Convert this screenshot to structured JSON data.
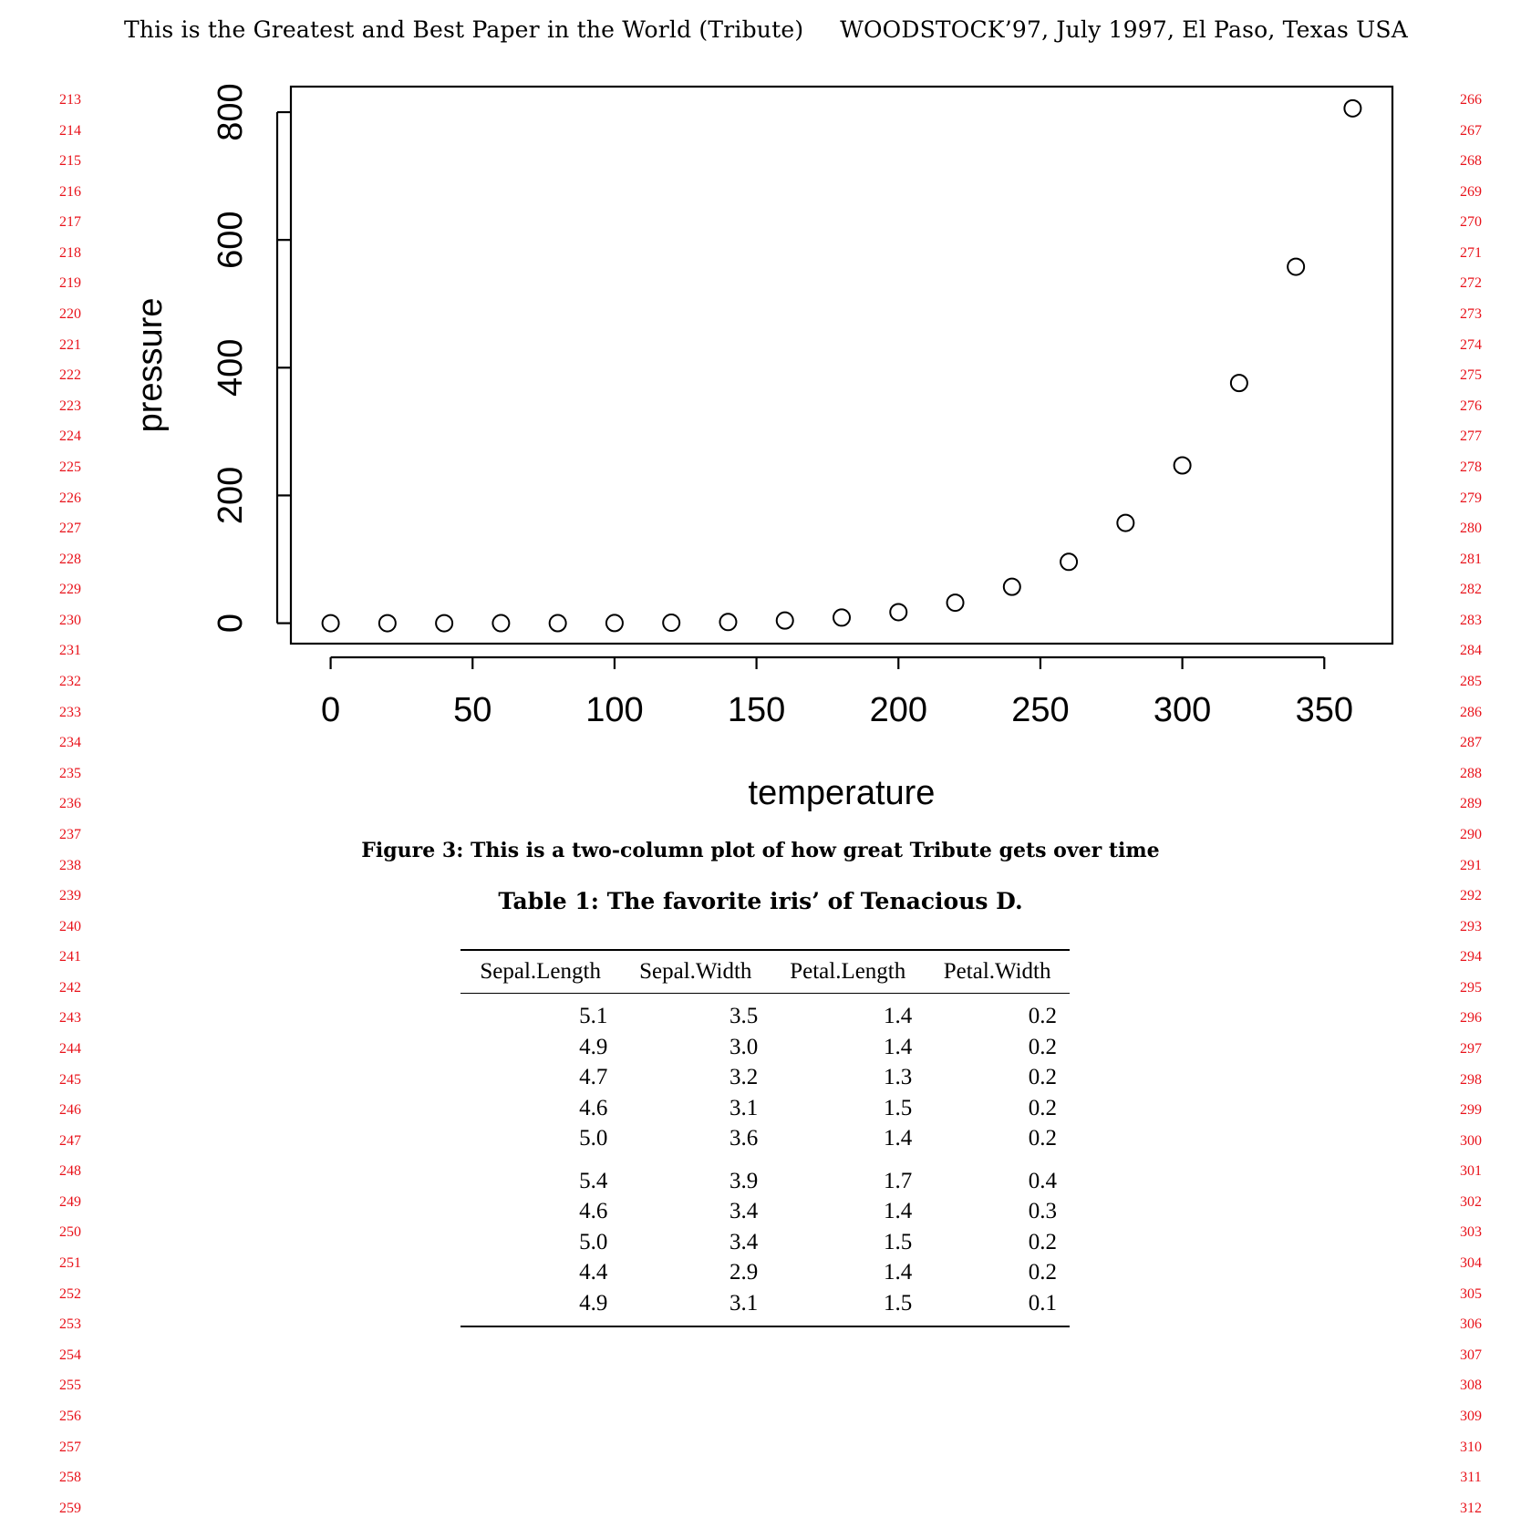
{
  "running_head": {
    "left": "This is the Greatest and Best Paper in the World (Tribute)",
    "right": "WOODSTOCK’97, July 1997, El Paso, Texas USA"
  },
  "line_numbers": {
    "left": [
      "213",
      "214",
      "215",
      "216",
      "217",
      "218",
      "219",
      "220",
      "221",
      "222",
      "223",
      "224",
      "225",
      "226",
      "227",
      "228",
      "229",
      "230",
      "231",
      "232",
      "233",
      "234",
      "235",
      "236",
      "237",
      "238",
      "239",
      "240",
      "241",
      "242",
      "243",
      "244",
      "245",
      "246",
      "247",
      "248",
      "249",
      "250",
      "251",
      "252",
      "253",
      "254",
      "255",
      "256",
      "257",
      "258",
      "259"
    ],
    "right": [
      "266",
      "267",
      "268",
      "269",
      "270",
      "271",
      "272",
      "273",
      "274",
      "275",
      "276",
      "277",
      "278",
      "279",
      "280",
      "281",
      "282",
      "283",
      "284",
      "285",
      "286",
      "287",
      "288",
      "289",
      "290",
      "291",
      "292",
      "293",
      "294",
      "295",
      "296",
      "297",
      "298",
      "299",
      "300",
      "301",
      "302",
      "303",
      "304",
      "305",
      "306",
      "307",
      "308",
      "309",
      "310",
      "311",
      "312"
    ],
    "color": "#e8121a"
  },
  "figure": {
    "caption": "Figure 3: This is a two-column plot of how great Tribute gets over time"
  },
  "chart_data": {
    "type": "scatter",
    "title": "",
    "xlabel": "temperature",
    "ylabel": "pressure",
    "xlim": [
      -14,
      374
    ],
    "ylim": [
      -32,
      840
    ],
    "xticks": [
      0,
      50,
      100,
      150,
      200,
      250,
      300,
      350
    ],
    "yticks": [
      0,
      200,
      400,
      600,
      800
    ],
    "grid": false,
    "marker": "open-circle",
    "series": [
      {
        "x": [
          0,
          20,
          40,
          60,
          80,
          100,
          120,
          140,
          160,
          180,
          200,
          220,
          240,
          260,
          280,
          300,
          320,
          340,
          360
        ],
        "y": [
          0.0002,
          0.0012,
          0.006,
          0.03,
          0.09,
          0.27,
          0.75,
          1.85,
          4.2,
          8.8,
          17.3,
          32.1,
          57,
          96,
          157,
          247,
          376,
          558,
          806
        ]
      }
    ]
  },
  "table": {
    "caption": "Table 1: The favorite iris’ of Tenacious D.",
    "columns": [
      "Sepal.Length",
      "Sepal.Width",
      "Petal.Length",
      "Petal.Width"
    ],
    "rows": [
      [
        "5.1",
        "3.5",
        "1.4",
        "0.2"
      ],
      [
        "4.9",
        "3.0",
        "1.4",
        "0.2"
      ],
      [
        "4.7",
        "3.2",
        "1.3",
        "0.2"
      ],
      [
        "4.6",
        "3.1",
        "1.5",
        "0.2"
      ],
      [
        "5.0",
        "3.6",
        "1.4",
        "0.2"
      ],
      [
        "5.4",
        "3.9",
        "1.7",
        "0.4"
      ],
      [
        "4.6",
        "3.4",
        "1.4",
        "0.3"
      ],
      [
        "5.0",
        "3.4",
        "1.5",
        "0.2"
      ],
      [
        "4.4",
        "2.9",
        "1.4",
        "0.2"
      ],
      [
        "4.9",
        "3.1",
        "1.5",
        "0.1"
      ]
    ]
  }
}
